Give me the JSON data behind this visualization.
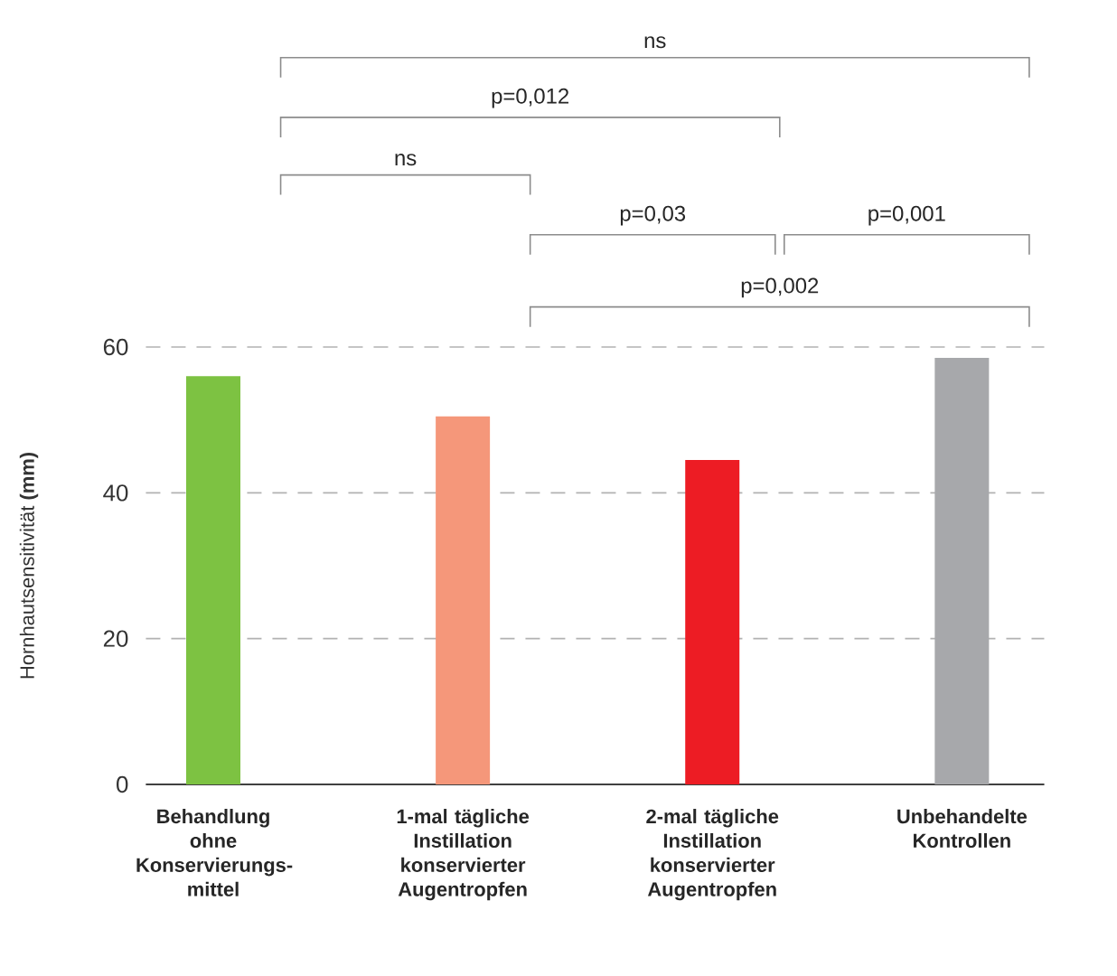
{
  "chart_data": {
    "type": "bar",
    "ylabel": "Hornhautsensitivität **(mm)**",
    "categories": [
      "Behandlung ohne Konservierungs-mittel",
      "1-mal tägliche Instillation konservierter Augentropfen",
      "2-mal tägliche Instillation konservierter Augentropfen",
      "Unbehandelte Kontrollen"
    ],
    "values": [
      56,
      50.5,
      44.5,
      58.5
    ],
    "colors": [
      "#7dc242",
      "#f5977a",
      "#ed1c24",
      "#a7a8ab"
    ],
    "ylim": [
      0,
      60
    ],
    "yticks": [
      0,
      20,
      40,
      60
    ],
    "grid": "y",
    "annotations": [
      "ns",
      "p=0,012",
      "ns",
      "p=0,03",
      "p=0,001",
      "p=0,002"
    ]
  }
}
